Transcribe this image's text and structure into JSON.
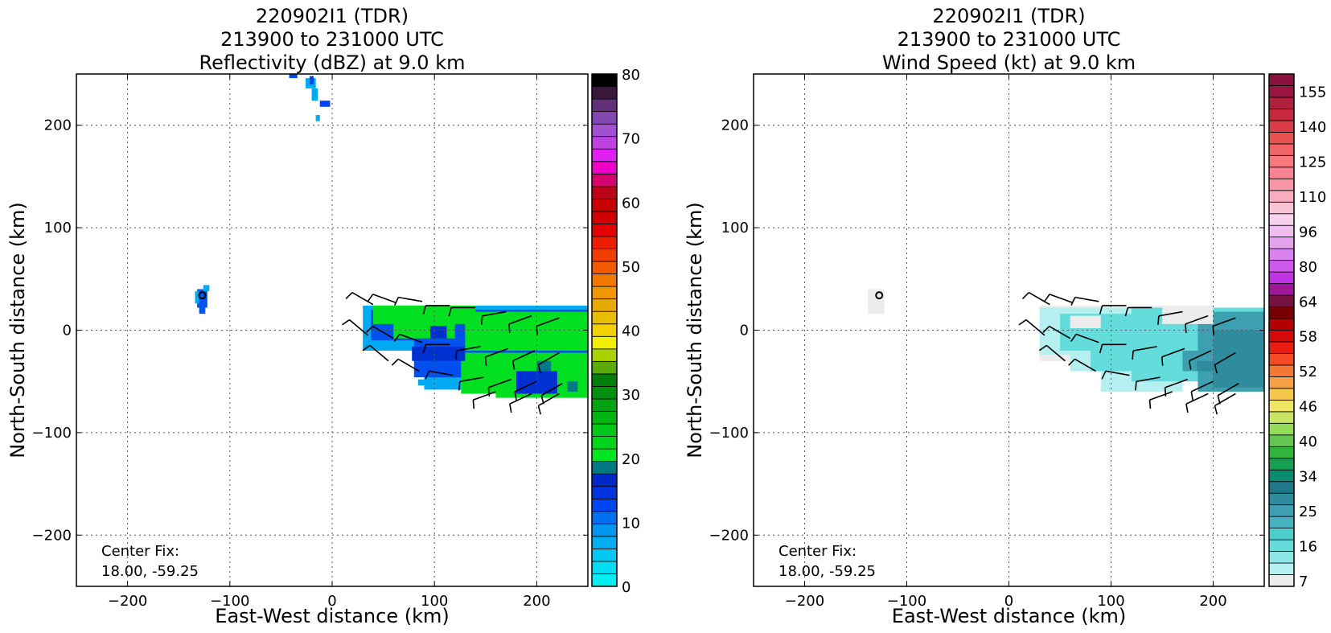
{
  "chart_data": [
    {
      "type": "heatmap",
      "title": [
        "220902I1 (TDR)",
        "213900 to 231000 UTC",
        "Reflectivity (dBZ) at 9.0 km"
      ],
      "xlabel": "East-West distance (km)",
      "ylabel": "North-South distance (km)",
      "xlim": [
        -250,
        250
      ],
      "ylim": [
        -250,
        250
      ],
      "xticks": [
        -200,
        -100,
        0,
        100,
        200
      ],
      "yticks": [
        -200,
        -100,
        0,
        100,
        200
      ],
      "x_tick_labels": [
        "−200",
        "−100",
        "0",
        "100",
        "200"
      ],
      "y_tick_labels": [
        "−200",
        "−100",
        "0",
        "100",
        "200"
      ],
      "grid": true,
      "annotation": [
        "Center Fix:",
        "18.00, -59.25"
      ],
      "center_marker": {
        "x": -127,
        "y": 34
      },
      "colorbar": {
        "label_values": [
          "0",
          "10",
          "20",
          "30",
          "40",
          "50",
          "60",
          "70",
          "80"
        ],
        "label_positions": [
          0,
          10,
          20,
          30,
          40,
          50,
          60,
          70,
          80
        ],
        "min": 0,
        "max": 80,
        "colors": [
          "#00f0f0",
          "#00dcf0",
          "#00c8f0",
          "#00aef0",
          "#0096f0",
          "#0070f0",
          "#0046f0",
          "#0032e0",
          "#0028c8",
          "#007884",
          "#00e620",
          "#00d41c",
          "#00c818",
          "#00b414",
          "#00a410",
          "#009010",
          "#007e0c",
          "#5aaa08",
          "#a8d200",
          "#f0f000",
          "#f0d200",
          "#e6be00",
          "#e6aa00",
          "#f09600",
          "#f07800",
          "#f05a00",
          "#f03c00",
          "#f01e00",
          "#e60000",
          "#d20000",
          "#c80000",
          "#c00018",
          "#d8006e",
          "#ee00c8",
          "#e020f0",
          "#c040e0",
          "#a050d0",
          "#8048b0",
          "#603078",
          "#381838",
          "#000000"
        ]
      },
      "data_regions": [
        {
          "color": "#0055ee",
          "cells": [
            [
              -132,
              22,
              -122,
              40
            ],
            [
              -130,
              16,
              -124,
              22
            ]
          ]
        },
        {
          "color": "#00aaf0",
          "cells": [
            [
              -134,
              26,
              -130,
              38
            ],
            [
              -126,
              38,
              -120,
              44
            ],
            [
              -26,
              236,
              -16,
              246
            ],
            [
              -20,
              224,
              -14,
              236
            ],
            [
              -16,
              204,
              -12,
              210
            ]
          ]
        },
        {
          "color": "#0044f0",
          "cells": [
            [
              -42,
              246,
              -34,
              250
            ],
            [
              -12,
              218,
              -2,
              224
            ],
            [
              -22,
              240,
              -18,
              248
            ]
          ]
        },
        {
          "color": "#00aaf0",
          "cells": [
            [
              30,
              -20,
              250,
              24
            ],
            [
              90,
              -58,
              250,
              -20
            ],
            [
              84,
              -54,
              92,
              -48
            ]
          ]
        },
        {
          "color": "#0050f0",
          "cells": [
            [
              38,
              -10,
              250,
              20
            ],
            [
              80,
              -46,
              250,
              -10
            ]
          ]
        },
        {
          "color": "#00e020",
          "cells": [
            [
              40,
              6,
              140,
              24
            ],
            [
              130,
              -20,
              250,
              18
            ],
            [
              126,
              -62,
              250,
              -22
            ],
            [
              60,
              -8,
              120,
              8
            ],
            [
              160,
              -66,
              250,
              -40
            ]
          ]
        },
        {
          "color": "#0030d0",
          "cells": [
            [
              78,
              -30,
              130,
              -16
            ],
            [
              180,
              -62,
              220,
              -40
            ],
            [
              96,
              -8,
              112,
              4
            ]
          ]
        },
        {
          "color": "#007a86",
          "cells": [
            [
              200,
              -40,
              214,
              -30
            ],
            [
              230,
              -60,
              240,
              -50
            ]
          ]
        }
      ],
      "wind_barbs": [
        {
          "x": 40,
          "y": 25,
          "dir": 300,
          "n": 1
        },
        {
          "x": 62,
          "y": 27,
          "dir": 290,
          "n": 1
        },
        {
          "x": 88,
          "y": 28,
          "dir": 280,
          "n": 1
        },
        {
          "x": 115,
          "y": 24,
          "dir": 270,
          "n": 1
        },
        {
          "x": 140,
          "y": 22,
          "dir": 270,
          "n": 1
        },
        {
          "x": 170,
          "y": 18,
          "dir": 260,
          "n": 1
        },
        {
          "x": 195,
          "y": 14,
          "dir": 250,
          "n": 1
        },
        {
          "x": 222,
          "y": 12,
          "dir": 250,
          "n": 1
        },
        {
          "x": 35,
          "y": -5,
          "dir": 310,
          "n": 1
        },
        {
          "x": 60,
          "y": -8,
          "dir": 300,
          "n": 1
        },
        {
          "x": 88,
          "y": -12,
          "dir": 290,
          "n": 1
        },
        {
          "x": 115,
          "y": -14,
          "dir": 270,
          "n": 1
        },
        {
          "x": 145,
          "y": -16,
          "dir": 260,
          "n": 1
        },
        {
          "x": 172,
          "y": -18,
          "dir": 250,
          "n": 1
        },
        {
          "x": 198,
          "y": -20,
          "dir": 245,
          "n": 1
        },
        {
          "x": 222,
          "y": -22,
          "dir": 240,
          "n": 1
        },
        {
          "x": 55,
          "y": -30,
          "dir": 310,
          "n": 1
        },
        {
          "x": 85,
          "y": -40,
          "dir": 300,
          "n": 1
        },
        {
          "x": 118,
          "y": -44,
          "dir": 280,
          "n": 1
        },
        {
          "x": 148,
          "y": -46,
          "dir": 260,
          "n": 1
        },
        {
          "x": 175,
          "y": -48,
          "dir": 250,
          "n": 1
        },
        {
          "x": 200,
          "y": -50,
          "dir": 245,
          "n": 1
        },
        {
          "x": 225,
          "y": -52,
          "dir": 240,
          "n": 1
        },
        {
          "x": 160,
          "y": -60,
          "dir": 250,
          "n": 1
        },
        {
          "x": 195,
          "y": -62,
          "dir": 245,
          "n": 1
        },
        {
          "x": 222,
          "y": -62,
          "dir": 240,
          "n": 1
        }
      ]
    },
    {
      "type": "heatmap",
      "title": [
        "220902I1 (TDR)",
        "213900 to 231000 UTC",
        "Wind Speed (kt) at 9.0 km"
      ],
      "xlabel": "East-West distance (km)",
      "ylabel": "North-South distance (km)",
      "xlim": [
        -250,
        250
      ],
      "ylim": [
        -250,
        250
      ],
      "xticks": [
        -200,
        -100,
        0,
        100,
        200
      ],
      "yticks": [
        -200,
        -100,
        0,
        100,
        200
      ],
      "x_tick_labels": [
        "−200",
        "−100",
        "0",
        "100",
        "200"
      ],
      "y_tick_labels": [
        "−200",
        "−100",
        "0",
        "100",
        "200"
      ],
      "grid": true,
      "annotation": [
        "Center Fix:",
        "18.00, -59.25"
      ],
      "center_marker": {
        "x": -127,
        "y": 34
      },
      "colorbar": {
        "label_values": [
          "7",
          "16",
          "25",
          "34",
          "40",
          "46",
          "52",
          "58",
          "64",
          "80",
          "96",
          "110",
          "125",
          "140",
          "155"
        ],
        "label_positions": [
          0.5,
          3.5,
          6.5,
          9.5,
          12.5,
          15.5,
          18.5,
          21.5,
          24.5,
          27.5,
          30.5,
          33.5,
          36.5,
          39.5,
          42.5
        ],
        "min": 0,
        "max": 44,
        "colors": [
          "#ececec",
          "#b4f0f0",
          "#8ce6e6",
          "#64dcdc",
          "#50cccc",
          "#46b4c0",
          "#3ca0b0",
          "#2e8c9c",
          "#1e7888",
          "#0a8c6e",
          "#14a050",
          "#32b43c",
          "#64c850",
          "#96dc5a",
          "#c8e664",
          "#f0e664",
          "#f5c84b",
          "#f5a041",
          "#f57832",
          "#f54b23",
          "#e61e14",
          "#d20a0a",
          "#b40000",
          "#780000",
          "#781040",
          "#a0189a",
          "#c032e6",
          "#cc5aec",
          "#dc82f0",
          "#e6a0f0",
          "#f0bef0",
          "#f8d2ec",
          "#f8c4d6",
          "#f8acc0",
          "#f896a8",
          "#f88292",
          "#f8787c",
          "#f06468",
          "#e65050",
          "#dc3c46",
          "#c8283c",
          "#b41e3c",
          "#9a1440",
          "#8c1040"
        ]
      },
      "data_regions": [
        {
          "color": "#ececec",
          "cells": [
            [
              -138,
              16,
              -122,
              40
            ],
            [
              30,
              -30,
              100,
              24
            ],
            [
              120,
              0,
              200,
              24
            ],
            [
              100,
              -16,
              130,
              0
            ]
          ]
        },
        {
          "color": "#b4f0f0",
          "cells": [
            [
              30,
              -24,
              160,
              22
            ],
            [
              60,
              -40,
              160,
              -24
            ],
            [
              90,
              -60,
              170,
              -40
            ]
          ]
        },
        {
          "color": "#64dcdc",
          "cells": [
            [
              50,
              -20,
              170,
              16
            ],
            [
              120,
              -50,
              250,
              22
            ],
            [
              80,
              -40,
              130,
              -20
            ]
          ]
        },
        {
          "color": "#3ca0b0",
          "cells": [
            [
              185,
              -60,
              250,
              18
            ],
            [
              170,
              -40,
              190,
              -20
            ]
          ]
        },
        {
          "color": "#2e8c9c",
          "cells": [
            [
              200,
              -56,
              250,
              0
            ],
            [
              184,
              -40,
              200,
              -30
            ]
          ]
        },
        {
          "color": "#ececec",
          "cells": [
            [
              150,
              6,
              200,
              22
            ],
            [
              60,
              2,
              90,
              14
            ]
          ]
        }
      ],
      "wind_barbs": [
        {
          "x": 40,
          "y": 25,
          "dir": 300,
          "n": 1
        },
        {
          "x": 62,
          "y": 27,
          "dir": 290,
          "n": 1
        },
        {
          "x": 88,
          "y": 28,
          "dir": 280,
          "n": 1
        },
        {
          "x": 115,
          "y": 24,
          "dir": 270,
          "n": 1
        },
        {
          "x": 140,
          "y": 22,
          "dir": 270,
          "n": 1
        },
        {
          "x": 170,
          "y": 18,
          "dir": 260,
          "n": 1
        },
        {
          "x": 195,
          "y": 14,
          "dir": 250,
          "n": 1
        },
        {
          "x": 222,
          "y": 12,
          "dir": 250,
          "n": 1
        },
        {
          "x": 35,
          "y": -5,
          "dir": 310,
          "n": 1
        },
        {
          "x": 60,
          "y": -8,
          "dir": 300,
          "n": 1
        },
        {
          "x": 88,
          "y": -12,
          "dir": 290,
          "n": 1
        },
        {
          "x": 115,
          "y": -14,
          "dir": 270,
          "n": 1
        },
        {
          "x": 145,
          "y": -16,
          "dir": 260,
          "n": 1
        },
        {
          "x": 172,
          "y": -18,
          "dir": 250,
          "n": 1
        },
        {
          "x": 198,
          "y": -20,
          "dir": 245,
          "n": 1
        },
        {
          "x": 222,
          "y": -22,
          "dir": 240,
          "n": 1
        },
        {
          "x": 55,
          "y": -30,
          "dir": 310,
          "n": 1
        },
        {
          "x": 85,
          "y": -40,
          "dir": 300,
          "n": 1
        },
        {
          "x": 118,
          "y": -44,
          "dir": 280,
          "n": 1
        },
        {
          "x": 148,
          "y": -46,
          "dir": 260,
          "n": 1
        },
        {
          "x": 175,
          "y": -48,
          "dir": 250,
          "n": 1
        },
        {
          "x": 200,
          "y": -50,
          "dir": 245,
          "n": 1
        },
        {
          "x": 225,
          "y": -52,
          "dir": 240,
          "n": 1
        },
        {
          "x": 160,
          "y": -60,
          "dir": 250,
          "n": 1
        },
        {
          "x": 195,
          "y": -62,
          "dir": 245,
          "n": 1
        },
        {
          "x": 222,
          "y": -62,
          "dir": 240,
          "n": 1
        }
      ]
    }
  ]
}
